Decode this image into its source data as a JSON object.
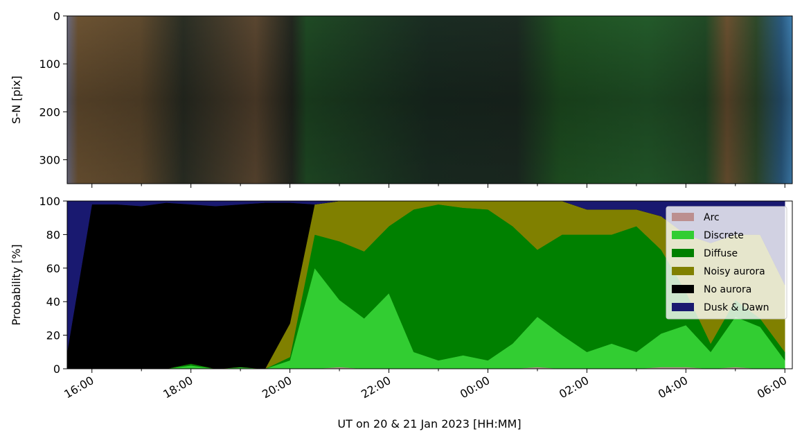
{
  "chart_data": [
    {
      "type": "image",
      "ylabel": "S-N [pix]",
      "ylim": [
        350,
        0
      ],
      "yticks": [
        0,
        100,
        200,
        300
      ]
    },
    {
      "type": "stacked-area",
      "ylabel": "Probability [%]",
      "xlabel": "UT on 20 & 21 Jan 2023 [HH:MM]",
      "xlim": [
        "15:30",
        "06:09"
      ],
      "xticks": [
        "16:00",
        "18:00",
        "20:00",
        "22:00",
        "00:00",
        "02:00",
        "04:00",
        "06:00"
      ],
      "ylim": [
        0,
        100
      ],
      "yticks": [
        0,
        20,
        40,
        60,
        80,
        100
      ],
      "legend": "upper right",
      "x": [
        "15:30",
        "16:00",
        "16:30",
        "17:00",
        "17:30",
        "18:00",
        "18:30",
        "19:00",
        "19:30",
        "20:00",
        "20:30",
        "21:00",
        "21:30",
        "22:00",
        "22:30",
        "23:00",
        "23:30",
        "00:00",
        "00:30",
        "01:00",
        "01:30",
        "02:00",
        "02:30",
        "03:00",
        "03:30",
        "04:00",
        "04:30",
        "05:00",
        "05:30",
        "06:00"
      ],
      "series": [
        {
          "name": "Arc",
          "color": "#bc8f8f",
          "values": [
            0,
            0,
            0,
            0,
            0,
            0,
            0,
            0,
            0,
            0,
            0,
            1,
            0,
            0,
            0,
            0,
            0,
            0,
            0,
            1,
            0,
            0,
            0,
            0,
            1,
            1,
            0,
            1,
            0,
            0
          ]
        },
        {
          "name": "Discrete",
          "color": "#32cd32",
          "values": [
            0,
            0,
            0,
            0,
            0,
            2,
            0,
            1,
            0,
            5,
            60,
            40,
            30,
            45,
            10,
            5,
            8,
            5,
            15,
            30,
            20,
            10,
            15,
            10,
            20,
            25,
            10,
            30,
            25,
            5
          ]
        },
        {
          "name": "Diffuse",
          "color": "#008000",
          "values": [
            0,
            0,
            0,
            0,
            0,
            1,
            0,
            0,
            0,
            2,
            20,
            35,
            40,
            40,
            85,
            93,
            88,
            90,
            70,
            40,
            60,
            70,
            65,
            75,
            50,
            20,
            5,
            10,
            5,
            5
          ]
        },
        {
          "name": "Noisy aurora",
          "color": "#808000",
          "values": [
            0,
            0,
            0,
            0,
            0,
            0,
            0,
            0,
            0,
            20,
            18,
            24,
            30,
            15,
            5,
            2,
            4,
            5,
            15,
            29,
            20,
            15,
            15,
            10,
            20,
            34,
            60,
            39,
            50,
            40
          ]
        },
        {
          "name": "No aurora",
          "color": "#000000",
          "values": [
            10,
            98,
            98,
            97,
            99,
            95,
            97,
            97,
            99,
            72,
            0,
            0,
            0,
            0,
            0,
            0,
            0,
            0,
            0,
            0,
            0,
            0,
            0,
            0,
            0,
            0,
            0,
            0,
            0,
            0
          ]
        },
        {
          "name": "Dusk & Dawn",
          "color": "#191970",
          "values": [
            90,
            2,
            2,
            3,
            1,
            2,
            3,
            2,
            1,
            1,
            2,
            0,
            0,
            0,
            0,
            0,
            0,
            0,
            0,
            0,
            0,
            5,
            5,
            5,
            9,
            20,
            25,
            20,
            20,
            50
          ]
        }
      ]
    }
  ]
}
